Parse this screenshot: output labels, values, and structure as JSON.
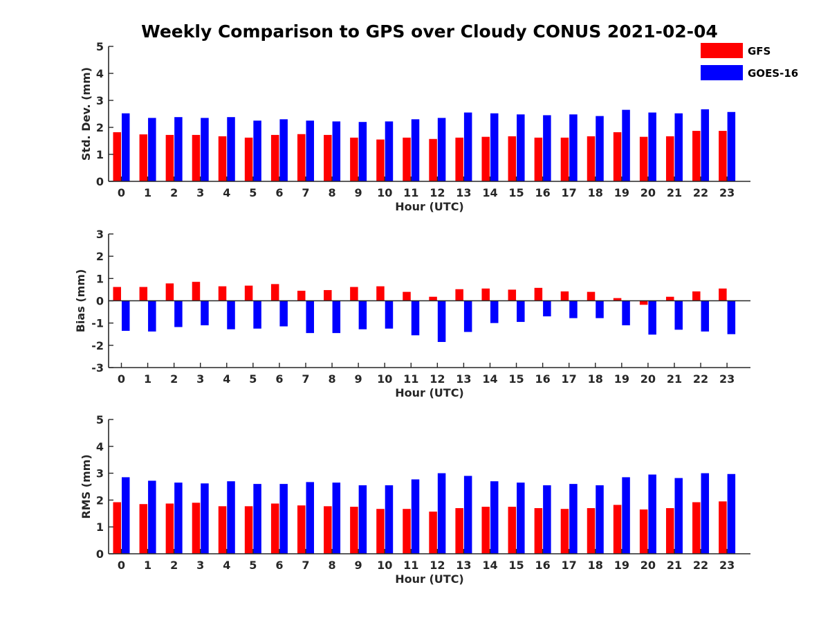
{
  "figure": {
    "title": "Weekly Comparison to GPS over Cloudy CONUS 2021-02-04"
  },
  "legend": {
    "placement": "top-right",
    "entries": [
      {
        "name": "GFS",
        "color": "#ff0000"
      },
      {
        "name": "GOES-16",
        "color": "#0000ff"
      }
    ]
  },
  "chart_data": [
    {
      "type": "bar",
      "title": "Weekly Comparison to GPS over Cloudy CONUS 2021-02-04",
      "xlabel": "Hour (UTC)",
      "ylabel": "Std. Dev. (mm)",
      "ylim": [
        0,
        5
      ],
      "yticks": [
        0,
        1,
        2,
        3,
        4,
        5
      ],
      "categories": [
        "0",
        "1",
        "2",
        "3",
        "4",
        "5",
        "6",
        "7",
        "8",
        "9",
        "10",
        "11",
        "12",
        "13",
        "14",
        "15",
        "16",
        "17",
        "18",
        "19",
        "20",
        "21",
        "22",
        "23"
      ],
      "series": [
        {
          "name": "GFS",
          "color": "#ff0000",
          "values": [
            1.82,
            1.74,
            1.72,
            1.72,
            1.67,
            1.62,
            1.72,
            1.75,
            1.72,
            1.62,
            1.55,
            1.62,
            1.57,
            1.62,
            1.65,
            1.67,
            1.62,
            1.62,
            1.67,
            1.82,
            1.65,
            1.67,
            1.87,
            1.87
          ]
        },
        {
          "name": "GOES-16",
          "color": "#0000ff",
          "values": [
            2.52,
            2.35,
            2.38,
            2.35,
            2.38,
            2.25,
            2.3,
            2.25,
            2.22,
            2.2,
            2.22,
            2.3,
            2.35,
            2.55,
            2.52,
            2.48,
            2.45,
            2.48,
            2.42,
            2.65,
            2.55,
            2.52,
            2.67,
            2.57
          ]
        }
      ]
    },
    {
      "type": "bar",
      "title": "",
      "xlabel": "Hour (UTC)",
      "ylabel": "Bias (mm)",
      "ylim": [
        -3,
        3
      ],
      "yticks": [
        -3,
        -2,
        -1,
        0,
        1,
        2,
        3
      ],
      "categories": [
        "0",
        "1",
        "2",
        "3",
        "4",
        "5",
        "6",
        "7",
        "8",
        "9",
        "10",
        "11",
        "12",
        "13",
        "14",
        "15",
        "16",
        "17",
        "18",
        "19",
        "20",
        "21",
        "22",
        "23"
      ],
      "series": [
        {
          "name": "GFS",
          "color": "#ff0000",
          "values": [
            0.62,
            0.62,
            0.78,
            0.85,
            0.65,
            0.68,
            0.75,
            0.45,
            0.48,
            0.62,
            0.65,
            0.4,
            0.18,
            0.52,
            0.55,
            0.5,
            0.58,
            0.42,
            0.4,
            0.12,
            -0.18,
            0.18,
            0.42,
            0.55
          ]
        },
        {
          "name": "GOES-16",
          "color": "#0000ff",
          "values": [
            -1.35,
            -1.38,
            -1.18,
            -1.1,
            -1.28,
            -1.25,
            -1.15,
            -1.45,
            -1.45,
            -1.28,
            -1.25,
            -1.55,
            -1.85,
            -1.4,
            -1.0,
            -0.95,
            -0.7,
            -0.78,
            -0.78,
            -1.1,
            -1.52,
            -1.3,
            -1.38,
            -1.5
          ]
        }
      ]
    },
    {
      "type": "bar",
      "title": "",
      "xlabel": "Hour (UTC)",
      "ylabel": "RMS (mm)",
      "ylim": [
        0,
        5
      ],
      "yticks": [
        0,
        1,
        2,
        3,
        4,
        5
      ],
      "categories": [
        "0",
        "1",
        "2",
        "3",
        "4",
        "5",
        "6",
        "7",
        "8",
        "9",
        "10",
        "11",
        "12",
        "13",
        "14",
        "15",
        "16",
        "17",
        "18",
        "19",
        "20",
        "21",
        "22",
        "23"
      ],
      "series": [
        {
          "name": "GFS",
          "color": "#ff0000",
          "values": [
            1.92,
            1.85,
            1.87,
            1.9,
            1.77,
            1.77,
            1.87,
            1.8,
            1.77,
            1.75,
            1.67,
            1.67,
            1.57,
            1.7,
            1.75,
            1.75,
            1.7,
            1.67,
            1.7,
            1.82,
            1.65,
            1.7,
            1.92,
            1.95
          ]
        },
        {
          "name": "GOES-16",
          "color": "#0000ff",
          "values": [
            2.85,
            2.72,
            2.65,
            2.62,
            2.7,
            2.6,
            2.6,
            2.67,
            2.65,
            2.55,
            2.55,
            2.77,
            3.0,
            2.9,
            2.7,
            2.65,
            2.55,
            2.6,
            2.55,
            2.85,
            2.95,
            2.82,
            3.0,
            2.97
          ]
        }
      ]
    }
  ]
}
